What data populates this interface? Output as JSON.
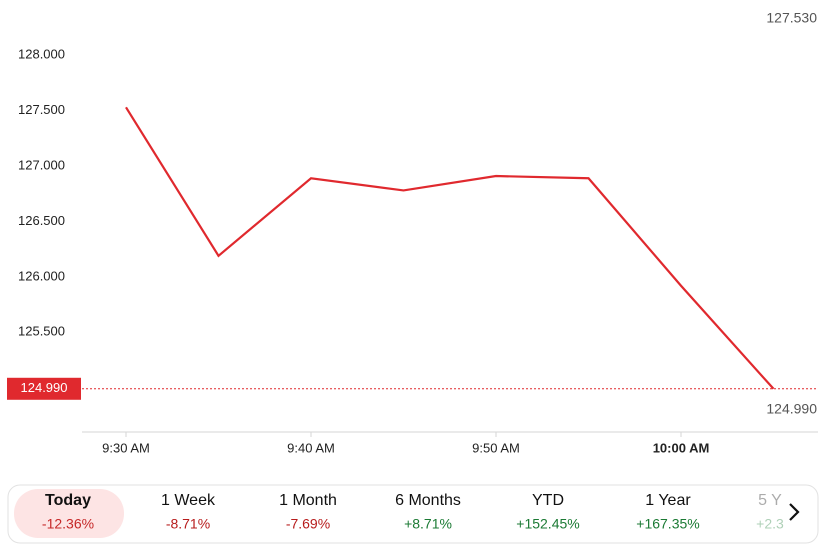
{
  "chart_data": {
    "type": "line",
    "categories": [
      "9:30 AM",
      null,
      "9:40 AM",
      null,
      "9:50 AM",
      null,
      "10:00 AM",
      null
    ],
    "bold_category_index": 6,
    "series": [
      {
        "color": "#e0292e",
        "values": [
          127.53,
          126.19,
          126.89,
          126.78,
          126.91,
          126.89,
          125.92,
          124.99
        ]
      }
    ],
    "ylim": [
      124.6,
      128.3
    ],
    "yticks": [
      {
        "value": 125.5,
        "label": "125.500"
      },
      {
        "value": 126,
        "label": "126.000"
      },
      {
        "value": 126.5,
        "label": "126.500"
      },
      {
        "value": 127,
        "label": "127.000"
      },
      {
        "value": 127.5,
        "label": "127.500"
      },
      {
        "value": 128,
        "label": "128.000"
      }
    ],
    "high": {
      "value": 127.53,
      "label": "127.530"
    },
    "low": {
      "value": 124.99,
      "label": "124.990"
    },
    "last": {
      "value": 124.99,
      "label": "124.990"
    }
  },
  "tabs": {
    "active": 0,
    "items": [
      {
        "label": "Today",
        "change": "-12.36%",
        "color": "#c62828"
      },
      {
        "label": "1 Week",
        "change": "-8.71%",
        "color": "#b71c1c"
      },
      {
        "label": "1 Month",
        "change": "-7.69%",
        "color": "#b71c1c"
      },
      {
        "label": "6 Months",
        "change": "+8.71%",
        "color": "#1b7a34"
      },
      {
        "label": "YTD",
        "change": "+152.45%",
        "color": "#1b7a34"
      },
      {
        "label": "1 Year",
        "change": "+167.35%",
        "color": "#1b7a34"
      },
      {
        "label": "5 Y",
        "change": "+2.3",
        "color": "#1b7a34"
      }
    ]
  }
}
